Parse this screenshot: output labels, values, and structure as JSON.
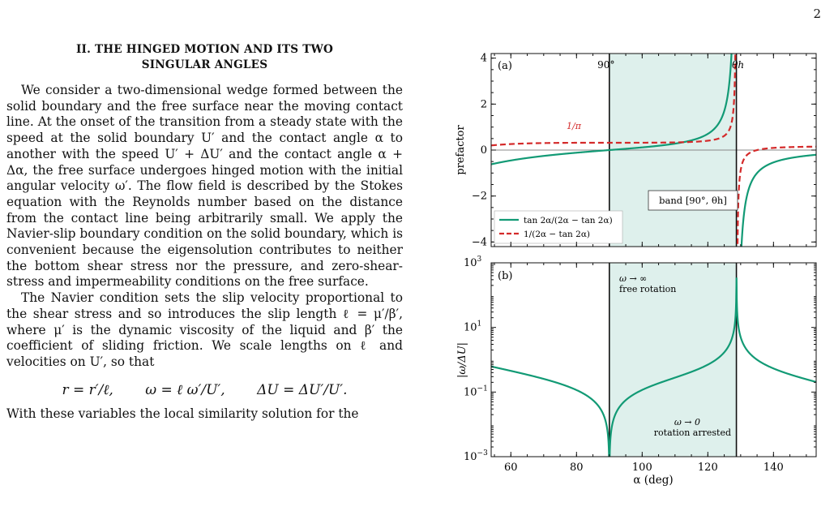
{
  "page_number": "2",
  "section": {
    "heading_line1": "II.  THE HINGED MOTION AND ITS TWO",
    "heading_line2": "SINGULAR ANGLES"
  },
  "paragraphs": [
    "We consider a two-dimensional wedge formed between the solid boundary and the free surface near the moving contact line. At the onset of the transition from a steady state with the speed at the solid boundary U′ and the contact angle α to another with the speed U′ + ΔU′ and the contact angle α + Δα, the free surface undergoes hinged motion with the initial angular velocity ω′. The flow field is described by the Stokes equation with the Reynolds number based on the distance from the contact line being arbitrarily small. We apply the Navier-slip boundary condition on the solid boundary, which is convenient because the eigensolution contributes to neither the bottom shear stress nor the pressure, and zero-shear-stress and impermeability conditions on the free surface.",
    "The Navier condition sets the slip velocity proportional to the shear stress and so introduces the slip length ℓ = μ′/β′, where μ′ is the dynamic viscosity of the liquid and β′ the coefficient of sliding friction. We scale lengths on ℓ and velocities on U′, so that"
  ],
  "equation": {
    "part1": "r = r′/ℓ,",
    "part2": "ω = ℓ ω′/U′,",
    "part3": "ΔU = ΔU′/U′."
  },
  "trailing_text": "With these variables the local similarity solution for the",
  "figure": {
    "panel_a": {
      "label": "(a)",
      "ylabel": "prefactor",
      "yticks": [
        "4",
        "2",
        "0",
        "−2",
        "−4"
      ],
      "annotation_90": "90°",
      "annotation_theta": "θh",
      "annotation_inv_pi": "1/π",
      "band_label": "band  [90°, θh]",
      "legend": [
        "tan 2α/(2α − tan 2α)",
        "1/(2α − tan 2α)"
      ]
    },
    "panel_b": {
      "label": "(b)",
      "ylabel": "|ω/ΔU|",
      "annotation_top_1": "ω → ∞",
      "annotation_top_2": "free rotation",
      "annotation_bottom_1": "ω → 0",
      "annotation_bottom_2": "rotation arrested"
    },
    "xlabel": "α  (deg)",
    "xticks": [
      "60",
      "80",
      "100",
      "120",
      "140"
    ]
  },
  "chart_data": [
    {
      "type": "line",
      "title": "",
      "xlabel": "",
      "ylabel": "prefactor",
      "xlim": [
        54,
        153
      ],
      "ylim": [
        -4.2,
        4.2
      ],
      "vertical_lines": [
        90,
        128.7
      ],
      "shaded_band": [
        90,
        128.7
      ],
      "horizontal_line": 0,
      "series": [
        {
          "name": "tan 2α/(2α − tan 2α)",
          "color": "#129a75",
          "style": "solid",
          "formula": "tan(2α)/(2α − tan(2α))"
        },
        {
          "name": "1/(2α − tan 2α)",
          "color": "#d42a2a",
          "style": "dashed",
          "formula": "1/(2α − tan(2α))"
        }
      ],
      "annotations": [
        "90°",
        "θh",
        "1/π",
        "band [90°, θh]"
      ],
      "legend_position": "bottom-left"
    },
    {
      "type": "line",
      "title": "",
      "xlabel": "α (deg)",
      "ylabel": "|ω/ΔU|",
      "xlim": [
        54,
        153
      ],
      "ylim": [
        0.001,
        1000
      ],
      "yscale": "log",
      "yticks": [
        "10^3",
        "10^1",
        "10^−1",
        "10^−3"
      ],
      "vertical_lines": [
        90,
        128.7
      ],
      "shaded_band": [
        90,
        128.7
      ],
      "series": [
        {
          "name": "",
          "color": "#129a75",
          "style": "solid",
          "formula": "|tan(2α)/(2α − tan(2α))|"
        }
      ],
      "annotations": [
        "ω → ∞ free rotation",
        "ω → 0 rotation arrested"
      ]
    }
  ]
}
